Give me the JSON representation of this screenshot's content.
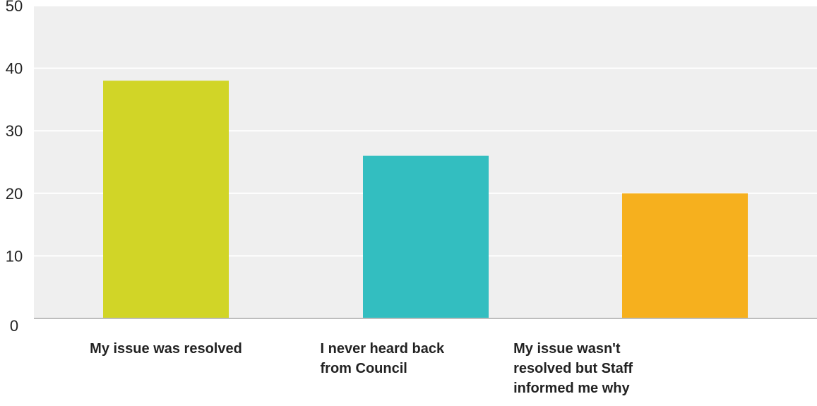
{
  "chart_data": {
    "type": "bar",
    "categories": [
      [
        "My issue was resolved"
      ],
      [
        "I never heard back",
        "from Council"
      ],
      [
        "My issue wasn't",
        "resolved but Staff",
        "informed me why"
      ]
    ],
    "values": [
      38,
      26,
      20
    ],
    "bar_colors": [
      "#d1d527",
      "#33bec0",
      "#f6b01e"
    ],
    "ylim": [
      0,
      50
    ],
    "yticks": [
      0,
      10,
      20,
      30,
      40,
      50
    ],
    "grid": true,
    "background_color": "#efefef",
    "gridline_color": "#ffffff",
    "title": "",
    "xlabel": "",
    "ylabel": ""
  }
}
